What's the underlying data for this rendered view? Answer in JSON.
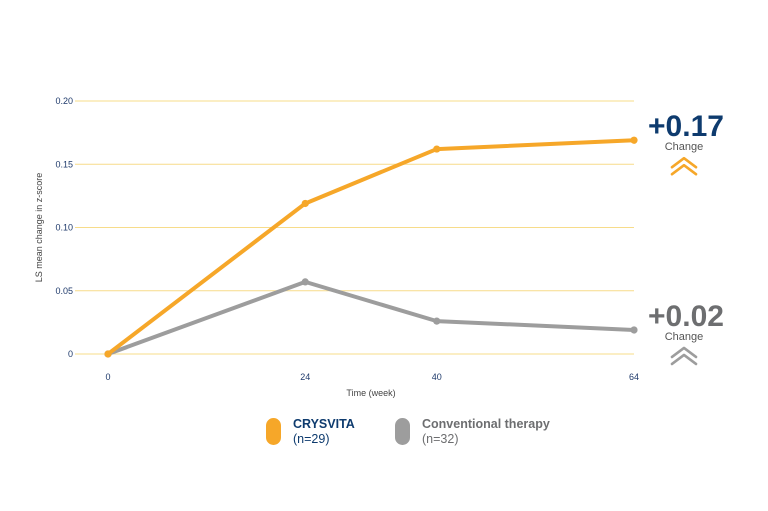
{
  "colors": {
    "crysvita": "#f6a729",
    "conventional": "#9d9d9d",
    "crysvita_text": "#0e3b6e",
    "conventional_text": "#6d6e70",
    "grid": "#f7dc8a"
  },
  "chart_data": {
    "type": "line",
    "xlabel": "Time (week)",
    "ylabel": "LS mean change in z-score",
    "x": [
      0,
      24,
      40,
      64
    ],
    "x_tick_labels": [
      "0",
      "24",
      "40",
      "64"
    ],
    "y_tick_labels": [
      "0",
      "0.05",
      "0.10",
      "0.15",
      "0.20"
    ],
    "y_ticks": [
      0,
      0.05,
      0.1,
      0.15,
      0.2
    ],
    "ylim": [
      0,
      0.2
    ],
    "xlim": [
      0,
      64
    ],
    "grid": true,
    "legend_position": "bottom",
    "series": [
      {
        "name": "CRYSVITA",
        "values": [
          0,
          0.119,
          0.162,
          0.169
        ]
      },
      {
        "name": "Conventional therapy",
        "values": [
          0,
          0.057,
          0.026,
          0.019
        ]
      }
    ]
  },
  "callouts": [
    {
      "value": "+0.17",
      "label": "Change",
      "color_key": "crysvita_text",
      "icon_color_key": "crysvita",
      "anchor_y": 0.169
    },
    {
      "value": "+0.02",
      "label": "Change",
      "color_key": "conventional_text",
      "icon_color_key": "conventional",
      "anchor_y": 0.019
    }
  ],
  "legend": [
    {
      "name": "CRYSVITA",
      "n": "(n=29)"
    },
    {
      "name": "Conventional therapy",
      "n": "(n=32)"
    }
  ]
}
